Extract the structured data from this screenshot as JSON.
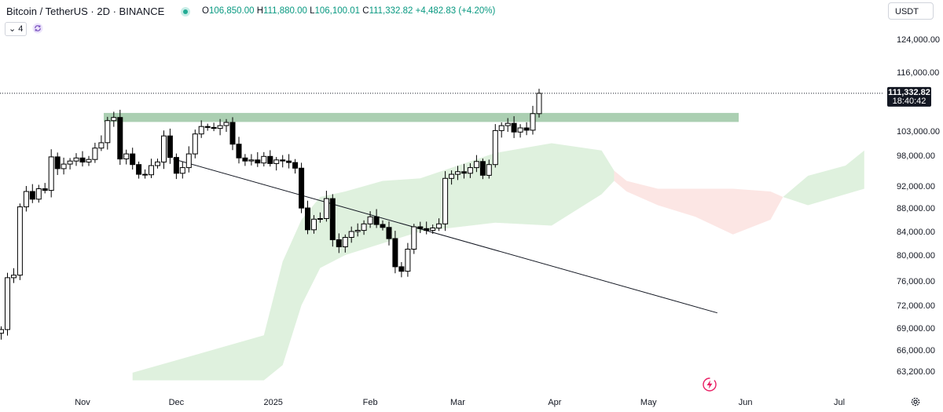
{
  "header": {
    "title": "Bitcoin / TetherUS · 2D · BINANCE",
    "ohlc": {
      "o_label": "O",
      "o": "106,850.00",
      "h_label": "H",
      "h": "111,880.00",
      "l_label": "L",
      "l": "106,100.01",
      "c_label": "C",
      "c": "111,332.82",
      "change": "+4,482.83 (+4.20%)"
    },
    "indicator_toggle": "⌄ 4",
    "currency": "USDT"
  },
  "price_badge": {
    "price": "111,332.82",
    "countdown": "18:40:42",
    "color": "#131722"
  },
  "colors": {
    "up": "#ffffff",
    "down": "#000000",
    "wick": "#000000",
    "cloud_bull": "#dff1de",
    "cloud_bear": "#fce6e4",
    "zone": "#8fbf98"
  },
  "chart_data": {
    "type": "candlestick",
    "title": "",
    "xlabel": "",
    "ylabel": "",
    "y_ticks": [
      {
        "value": 124000,
        "label": "124,000.00"
      },
      {
        "value": 116000,
        "label": "116,000.00"
      },
      {
        "value": 103000,
        "label": "103,000.00"
      },
      {
        "value": 98000,
        "label": "98,000.00"
      },
      {
        "value": 92000,
        "label": "92,000.00"
      },
      {
        "value": 88000,
        "label": "88,000.00"
      },
      {
        "value": 84000,
        "label": "84,000.00"
      },
      {
        "value": 80000,
        "label": "80,000.00"
      },
      {
        "value": 76000,
        "label": "76,000.00"
      },
      {
        "value": 72000,
        "label": "72,000.00"
      },
      {
        "value": 69000,
        "label": "69,000.00"
      },
      {
        "value": 66000,
        "label": "66,000.00"
      },
      {
        "value": 63200,
        "label": "63,200.00"
      }
    ],
    "x_ticks": [
      {
        "label": "Nov",
        "date": "2024-11-01"
      },
      {
        "label": "Dec",
        "date": "2024-12-01"
      },
      {
        "label": "2025",
        "date": "2025-01-01"
      },
      {
        "label": "Feb",
        "date": "2025-02-01"
      },
      {
        "label": "Mar",
        "date": "2025-03-01"
      },
      {
        "label": "Apr",
        "date": "2025-04-01"
      },
      {
        "label": "May",
        "date": "2025-05-01"
      },
      {
        "label": "Jun",
        "date": "2025-06-01"
      },
      {
        "label": "Jul",
        "date": "2025-07-01"
      }
    ],
    "resistance_zone": [
      105000,
      107000
    ],
    "trendline": [
      {
        "date": "2024-11-30",
        "price": 97300
      },
      {
        "date": "2025-05-23",
        "price": 71000
      }
    ],
    "last_price": 111332.82,
    "candles_close": [
      66500,
      67400,
      68200,
      68900,
      68700,
      69000,
      68300,
      67600,
      68100,
      69900,
      68300,
      68800,
      76500,
      76900,
      88200,
      91000,
      89600,
      91500,
      91200,
      97700,
      95400,
      96300,
      96900,
      97500,
      96700,
      97200,
      99500,
      100600,
      105300,
      106000,
      97300,
      98300,
      96200,
      94300,
      94200,
      96000,
      96700,
      102000,
      97600,
      94500,
      95600,
      98300,
      102400,
      104000,
      103800,
      103600,
      104200,
      104900,
      100300,
      97500,
      96900,
      97100,
      96500,
      97800,
      96400,
      97100,
      96900,
      96600,
      95500,
      88000,
      84300,
      86100,
      86200,
      89700,
      82600,
      81400,
      83000,
      84000,
      84200,
      85300,
      86500,
      85200,
      84700,
      82800,
      78200,
      77500,
      81000,
      84800,
      84500,
      84200,
      84600,
      85300,
      93500,
      94300,
      94800,
      94500,
      95600,
      96800,
      94100,
      96200,
      103100,
      104200,
      104700,
      102800,
      103700,
      103200,
      106850,
      111332.82
    ],
    "ichimoku_cloud": [
      {
        "date": "2024-11-17",
        "top": 63000,
        "bottom": 62000
      },
      {
        "date": "2024-12-29",
        "top": 68000,
        "bottom": 62000
      },
      {
        "date": "2025-01-04",
        "top": 79000,
        "bottom": 64000
      },
      {
        "date": "2025-01-10",
        "top": 86000,
        "bottom": 72000
      },
      {
        "date": "2025-01-16",
        "top": 90000,
        "bottom": 78000
      },
      {
        "date": "2025-01-24",
        "top": 91000,
        "bottom": 80000
      },
      {
        "date": "2025-02-05",
        "top": 93000,
        "bottom": 82000
      },
      {
        "date": "2025-02-17",
        "top": 93500,
        "bottom": 84000
      },
      {
        "date": "2025-03-13",
        "top": 98500,
        "bottom": 85500
      },
      {
        "date": "2025-03-31",
        "top": 100500,
        "bottom": 85000
      },
      {
        "date": "2025-04-16",
        "top": 99000,
        "bottom": 90500
      },
      {
        "date": "2025-04-20",
        "top": 95000,
        "bottom": 93000
      }
    ],
    "ichimoku_cloud_bear": [
      {
        "date": "2025-04-20",
        "top": 95000,
        "bottom": 93000
      },
      {
        "date": "2025-04-24",
        "top": 93000,
        "bottom": 91000
      },
      {
        "date": "2025-05-04",
        "top": 91500,
        "bottom": 88500
      },
      {
        "date": "2025-05-16",
        "top": 91500,
        "bottom": 86500
      },
      {
        "date": "2025-05-28",
        "top": 91500,
        "bottom": 83500
      },
      {
        "date": "2025-06-09",
        "top": 91000,
        "bottom": 86000
      },
      {
        "date": "2025-06-13",
        "top": 90000,
        "bottom": 90000
      }
    ],
    "ichimoku_cloud_future": [
      {
        "date": "2025-06-13",
        "top": 90000,
        "bottom": 90000
      },
      {
        "date": "2025-06-21",
        "top": 94000,
        "bottom": 88500
      },
      {
        "date": "2025-07-03",
        "top": 96000,
        "bottom": 90500
      },
      {
        "date": "2025-07-09",
        "top": 99000,
        "bottom": 91500
      }
    ]
  },
  "icons": {
    "refresh": "refresh-icon",
    "settings": "gear-icon",
    "flash": "lightning-icon"
  }
}
